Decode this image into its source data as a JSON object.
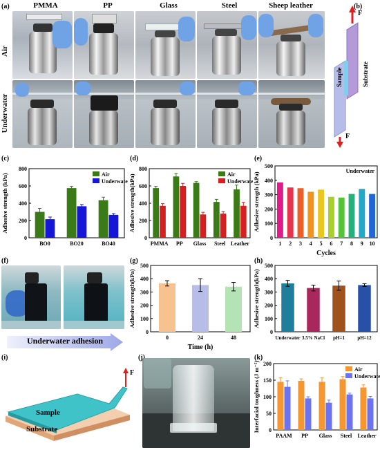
{
  "panel_labels": {
    "a": "(a)",
    "b": "(b)",
    "c": "(c)",
    "d": "(d)",
    "e": "(e)",
    "f": "(f)",
    "g": "(g)",
    "h": "(h)",
    "i": "(i)",
    "j": "(j)",
    "k": "(k)"
  },
  "panel_a": {
    "columns": [
      "PMMA",
      "PP",
      "Glass",
      "Steel",
      "Sheep leather"
    ],
    "rows": [
      "Air",
      "Underwater"
    ]
  },
  "panel_b": {
    "sample": "Sample",
    "substrate": "Substrate",
    "force": "F"
  },
  "panel_f": {
    "caption": "Underwater adhesion"
  },
  "panel_i": {
    "sample": "Sample",
    "substrate": "Substrate",
    "force": "F"
  },
  "colors": {
    "air_green": "#3a7a17",
    "underwater_blue": "#1616d6",
    "red": "#d42020",
    "k_orange": "#f5962e",
    "k_blue": "#6c73f0"
  },
  "chart_data": [
    {
      "id": "c",
      "type": "bar",
      "categories": [
        "BO0",
        "BO20",
        "BO40"
      ],
      "series": [
        {
          "name": "Air",
          "values": [
            300,
            575,
            435
          ]
        },
        {
          "name": "Underwater",
          "values": [
            215,
            365,
            265
          ]
        }
      ],
      "errors": [
        [
          40,
          20,
          35
        ],
        [
          25,
          20,
          15
        ]
      ],
      "xlabel": "",
      "ylabel": "Adhesive strength (kPa)",
      "ylim": [
        0,
        800
      ],
      "yticks": [
        "0",
        "200",
        "400",
        "600",
        "800"
      ],
      "legend": "top-right"
    },
    {
      "id": "d",
      "type": "bar",
      "categories": [
        "PMMA",
        "PP",
        "Glass",
        "Steel",
        "Leather"
      ],
      "series": [
        {
          "name": "Air",
          "values": [
            575,
            710,
            635,
            415,
            560
          ]
        },
        {
          "name": "Underwater",
          "values": [
            370,
            600,
            270,
            280,
            370
          ]
        }
      ],
      "errors": [
        [
          20,
          35,
          15,
          30,
          50
        ],
        [
          25,
          30,
          25,
          25,
          40
        ]
      ],
      "xlabel": "",
      "ylabel": "Adhesive strength(kPa)",
      "ylim": [
        0,
        800
      ],
      "yticks": [
        "0",
        "200",
        "400",
        "600",
        "800"
      ],
      "legend": "top-right"
    },
    {
      "id": "e",
      "type": "bar",
      "categories": [
        "1",
        "2",
        "3",
        "4",
        "5",
        "6",
        "7",
        "8",
        "9",
        "10"
      ],
      "values": [
        385,
        350,
        345,
        320,
        335,
        285,
        280,
        305,
        340,
        305
      ],
      "bar_colors": [
        "#e01b8a",
        "#e8324e",
        "#ec5f28",
        "#f29320",
        "#e8c820",
        "#a8d028",
        "#56c23a",
        "#25b07c",
        "#22a8c8",
        "#2266d8"
      ],
      "xlabel": "Cycles",
      "ylabel": "Adhesive strength (kPa)",
      "ylim": [
        0,
        500
      ],
      "yticks": [
        "0",
        "100",
        "200",
        "300",
        "400",
        "500"
      ],
      "annotation": "Underwater"
    },
    {
      "id": "g",
      "type": "bar",
      "categories": [
        "0",
        "24",
        "48"
      ],
      "values": [
        365,
        352,
        340
      ],
      "errors": [
        20,
        48,
        32
      ],
      "bar_colors": [
        "#f6c28f",
        "#b7bde6",
        "#b4e3b6"
      ],
      "xlabel": "Time (h)",
      "ylabel": "Adhesive strength(kPa)",
      "ylim": [
        0,
        500
      ],
      "yticks": [
        "0",
        "100",
        "200",
        "300",
        "400",
        "500"
      ]
    },
    {
      "id": "h",
      "type": "bar",
      "categories": [
        "Underwater",
        "3.5% NaCl",
        "pH=1",
        "pH=12"
      ],
      "values": [
        365,
        330,
        348,
        352
      ],
      "errors": [
        22,
        22,
        35,
        10
      ],
      "bar_colors": [
        "#1e7e9c",
        "#a8285e",
        "#a0521c",
        "#2850a8"
      ],
      "xlabel": "",
      "ylabel": "Adhesive strength(kPa)",
      "ylim": [
        0,
        500
      ],
      "yticks": [
        "0",
        "100",
        "200",
        "300",
        "400",
        "500"
      ]
    },
    {
      "id": "k",
      "type": "bar",
      "categories": [
        "PAAM",
        "PP",
        "Glass",
        "Steel",
        "Leather"
      ],
      "series": [
        {
          "name": "Air",
          "values": [
            145,
            148,
            145,
            153,
            128
          ]
        },
        {
          "name": "Underwater",
          "values": [
            130,
            95,
            82,
            107,
            95
          ]
        }
      ],
      "errors": [
        [
          12,
          6,
          12,
          8,
          8
        ],
        [
          18,
          5,
          8,
          4,
          6
        ]
      ],
      "xlabel": "",
      "ylabel": "Interfacial toughness (J m⁻²)",
      "ylim": [
        0,
        200
      ],
      "yticks": [
        "0",
        "50",
        "100",
        "150",
        "200"
      ],
      "legend": "top-right"
    }
  ]
}
